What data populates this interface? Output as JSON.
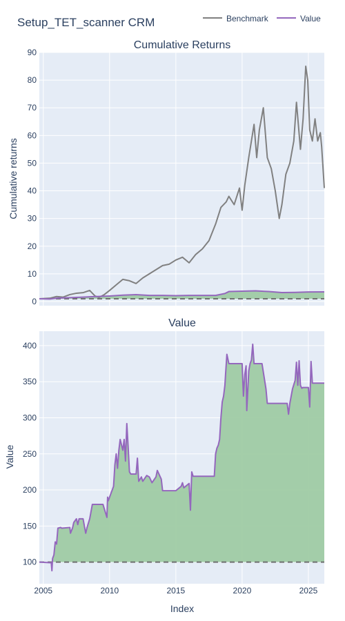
{
  "title": "Setup_TET_scanner CRM",
  "legend": {
    "placement": "top-right",
    "items": [
      {
        "name": "Benchmark",
        "color": "#808080"
      },
      {
        "name": "Value",
        "color": "#9467bd"
      }
    ]
  },
  "colors": {
    "benchmark": "#808080",
    "value": "#9467bd",
    "fill": "#9fcba4",
    "plot_bg": "#e5ecf6",
    "grid": "#ffffff",
    "text": "#2a3f5f",
    "baseline": "#6f6f6f"
  },
  "chart_data": [
    {
      "type": "line",
      "title": "Cumulative Returns",
      "xlabel": "",
      "ylabel": "Cumulative returns",
      "xlim": [
        2004.7,
        2026.2
      ],
      "ylim": [
        -1.5,
        90
      ],
      "xticks": [
        2005,
        2010,
        2015,
        2020,
        2025
      ],
      "xtick_labels_shown": false,
      "yticks": [
        0,
        10,
        20,
        30,
        40,
        50,
        60,
        70,
        80,
        90
      ],
      "grid": true,
      "baseline": 1,
      "series": [
        {
          "name": "Benchmark",
          "x": [
            2004.7,
            2005.5,
            2006.0,
            2006.5,
            2007.0,
            2007.5,
            2008.0,
            2008.5,
            2008.9,
            2009.2,
            2009.6,
            2010.0,
            2010.5,
            2011.0,
            2011.5,
            2012.0,
            2012.5,
            2013.0,
            2013.5,
            2014.0,
            2014.5,
            2015.0,
            2015.5,
            2016.0,
            2016.5,
            2017.0,
            2017.5,
            2018.0,
            2018.4,
            2018.8,
            2019.0,
            2019.4,
            2019.8,
            2020.0,
            2020.2,
            2020.5,
            2020.7,
            2020.9,
            2021.1,
            2021.3,
            2021.6,
            2021.9,
            2022.2,
            2022.5,
            2022.8,
            2023.0,
            2023.3,
            2023.6,
            2023.9,
            2024.1,
            2024.4,
            2024.6,
            2024.8,
            2024.95,
            2025.1,
            2025.3,
            2025.5,
            2025.7,
            2025.9,
            2026.0,
            2026.2
          ],
          "y": [
            1.0,
            1.2,
            1.8,
            1.6,
            2.5,
            3.0,
            3.2,
            4.0,
            2.0,
            1.5,
            2.5,
            4.0,
            6.0,
            8.0,
            7.5,
            6.5,
            8.5,
            10.0,
            11.5,
            13.0,
            13.5,
            15.0,
            16.0,
            14.0,
            17.0,
            19.0,
            22.0,
            28.0,
            34.0,
            36.0,
            38.0,
            35.0,
            41.0,
            33.0,
            42.0,
            52.0,
            58.0,
            64.0,
            52.0,
            62.0,
            70.0,
            52.0,
            48.0,
            40.0,
            30.0,
            35.0,
            46.0,
            50.0,
            58.0,
            72.0,
            55.0,
            66.0,
            85.0,
            80.0,
            62.0,
            58.0,
            66.0,
            58.0,
            61.0,
            56.0,
            41.0
          ]
        },
        {
          "name": "Value",
          "x": [
            2004.7,
            2005.5,
            2006.0,
            2007.0,
            2008.0,
            2009.0,
            2010.0,
            2011.0,
            2012.0,
            2013.0,
            2014.0,
            2015.0,
            2016.0,
            2017.0,
            2018.0,
            2018.7,
            2019.0,
            2020.0,
            2021.0,
            2022.0,
            2023.0,
            2024.0,
            2025.0,
            2026.2
          ],
          "y": [
            1.0,
            0.9,
            1.2,
            1.4,
            1.6,
            1.8,
            2.0,
            2.3,
            2.5,
            2.2,
            2.2,
            2.1,
            2.2,
            2.2,
            2.2,
            2.9,
            3.6,
            3.75,
            3.85,
            3.6,
            3.25,
            3.3,
            3.45,
            3.48
          ]
        }
      ]
    },
    {
      "type": "area",
      "title": "Value",
      "xlabel": "Index",
      "ylabel": "Value",
      "xlim": [
        2004.7,
        2026.2
      ],
      "ylim": [
        70,
        420
      ],
      "xticks": [
        2005,
        2010,
        2015,
        2020,
        2025
      ],
      "yticks": [
        100,
        150,
        200,
        250,
        300,
        350,
        400
      ],
      "grid": true,
      "baseline": 100,
      "series": [
        {
          "name": "Value",
          "x": [
            2004.7,
            2005.6,
            2005.65,
            2005.7,
            2005.8,
            2005.9,
            2006.0,
            2006.1,
            2006.3,
            2006.4,
            2007.0,
            2007.05,
            2007.2,
            2007.3,
            2007.5,
            2007.6,
            2007.7,
            2008.0,
            2008.2,
            2008.3,
            2008.5,
            2008.7,
            2009.0,
            2009.5,
            2009.8,
            2009.85,
            2009.9,
            2010.0,
            2010.3,
            2010.4,
            2010.5,
            2010.6,
            2010.7,
            2010.8,
            2011.0,
            2011.1,
            2011.2,
            2011.3,
            2011.4,
            2011.5,
            2011.6,
            2012.0,
            2012.1,
            2012.2,
            2012.4,
            2012.5,
            2012.8,
            2013.0,
            2013.2,
            2013.5,
            2013.6,
            2013.9,
            2014.0,
            2014.1,
            2015.0,
            2015.4,
            2015.5,
            2015.6,
            2016.0,
            2016.1,
            2016.2,
            2016.3,
            2016.5,
            2017.0,
            2017.5,
            2017.9,
            2018.0,
            2018.1,
            2018.2,
            2018.3,
            2018.4,
            2018.5,
            2018.6,
            2018.7,
            2018.75,
            2018.85,
            2019.0,
            2019.5,
            2019.8,
            2020.0,
            2020.1,
            2020.2,
            2020.3,
            2020.35,
            2020.5,
            2020.6,
            2020.7,
            2020.8,
            2020.9,
            2021.0,
            2021.2,
            2021.5,
            2021.8,
            2021.9,
            2022.0,
            2022.5,
            2023.0,
            2023.4,
            2023.5,
            2023.6,
            2023.8,
            2024.0,
            2024.1,
            2024.2,
            2024.3,
            2024.4,
            2024.5,
            2024.6,
            2024.7,
            2024.8,
            2025.0,
            2025.1,
            2025.2,
            2025.3,
            2025.4,
            2026.2
          ],
          "y": [
            100,
            99,
            88,
            105,
            110,
            128,
            125,
            147,
            148,
            147,
            148,
            140,
            147,
            155,
            160,
            152,
            160,
            160,
            140,
            148,
            160,
            180,
            180,
            180,
            162,
            190,
            185,
            190,
            205,
            235,
            250,
            230,
            255,
            270,
            255,
            270,
            240,
            292,
            260,
            225,
            222,
            222,
            244,
            212,
            218,
            212,
            220,
            218,
            210,
            218,
            227,
            215,
            199,
            199,
            199,
            205,
            210,
            203,
            209,
            172,
            225,
            219,
            219,
            219,
            219,
            219,
            250,
            258,
            262,
            270,
            300,
            322,
            330,
            345,
            360,
            388,
            375,
            375,
            375,
            375,
            330,
            360,
            372,
            310,
            365,
            375,
            380,
            402,
            375,
            375,
            375,
            375,
            340,
            320,
            320,
            320,
            320,
            320,
            305,
            320,
            340,
            352,
            377,
            345,
            379,
            345,
            341,
            342,
            342,
            342,
            342,
            315,
            378,
            348,
            348,
            348
          ]
        }
      ]
    }
  ]
}
